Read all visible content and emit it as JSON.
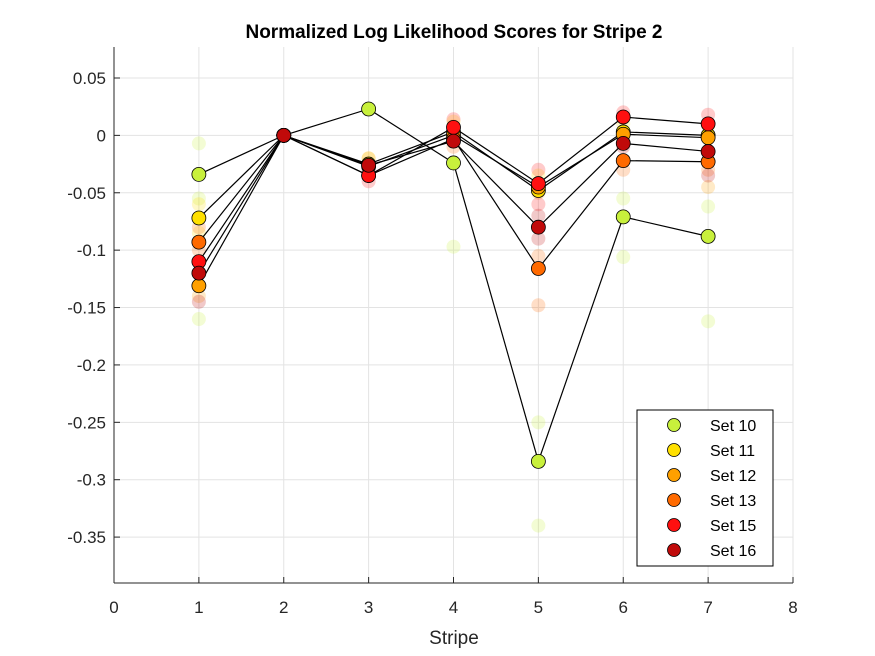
{
  "chart_data": {
    "type": "scatter",
    "title": "Normalized Log Likelihood Scores for Stripe 2",
    "xlabel": "Stripe",
    "ylabel": "",
    "xlim": [
      0,
      8
    ],
    "ylim": [
      -0.39,
      0.077
    ],
    "xticks": [
      "0",
      "1",
      "2",
      "3",
      "4",
      "5",
      "6",
      "7",
      "8"
    ],
    "yticks": [
      {
        "value": 0.05,
        "label": "0.05"
      },
      {
        "value": 0,
        "label": "0"
      },
      {
        "value": -0.05,
        "label": "-0.05"
      },
      {
        "value": -0.1,
        "label": "-0.1"
      },
      {
        "value": -0.15,
        "label": "-0.15"
      },
      {
        "value": -0.2,
        "label": "-0.2"
      },
      {
        "value": -0.25,
        "label": "-0.25"
      },
      {
        "value": -0.3,
        "label": "-0.3"
      },
      {
        "value": -0.35,
        "label": "-0.35"
      }
    ],
    "grid": true,
    "legend_position": "bottom-right",
    "x": [
      1,
      2,
      3,
      4,
      5,
      6,
      7
    ],
    "series": [
      {
        "name": "Set 10",
        "color": "#C8F03C",
        "values": [
          -0.034,
          0,
          0.023,
          -0.024,
          -0.284,
          -0.071,
          -0.088
        ],
        "scatter": [
          [
            1,
            -0.007
          ],
          [
            1,
            -0.055
          ],
          [
            1,
            -0.16
          ],
          [
            4,
            -0.097
          ],
          [
            5,
            -0.25
          ],
          [
            5,
            -0.34
          ],
          [
            6,
            -0.055
          ],
          [
            6,
            -0.106
          ],
          [
            7,
            -0.062
          ],
          [
            7,
            -0.162
          ]
        ]
      },
      {
        "name": "Set 11",
        "color": "#FFE000",
        "values": [
          -0.072,
          0,
          -0.025,
          0.003,
          -0.048,
          0.003,
          0.0
        ],
        "scatter": [
          [
            1,
            -0.06
          ],
          [
            1,
            -0.085
          ],
          [
            3,
            -0.02
          ],
          [
            4,
            0.012
          ],
          [
            5,
            -0.035
          ],
          [
            6,
            0.01
          ],
          [
            7,
            0.008
          ]
        ]
      },
      {
        "name": "Set 12",
        "color": "#FFA000",
        "values": [
          -0.131,
          0,
          -0.027,
          0.0,
          -0.045,
          0.001,
          -0.002
        ],
        "scatter": [
          [
            1,
            -0.14
          ],
          [
            3,
            -0.02
          ],
          [
            3,
            -0.035
          ],
          [
            4,
            0.008
          ],
          [
            5,
            -0.05
          ],
          [
            6,
            -0.005
          ],
          [
            7,
            -0.045
          ]
        ]
      },
      {
        "name": "Set 13",
        "color": "#FF6A00",
        "values": [
          -0.093,
          0,
          -0.035,
          -0.003,
          -0.116,
          -0.022,
          -0.023
        ],
        "scatter": [
          [
            1,
            -0.08
          ],
          [
            1,
            -0.1
          ],
          [
            3,
            -0.025
          ],
          [
            4,
            -0.01
          ],
          [
            5,
            -0.105
          ],
          [
            5,
            -0.148
          ],
          [
            6,
            -0.03
          ],
          [
            7,
            -0.03
          ]
        ]
      },
      {
        "name": "Set 15",
        "color": "#FF1010",
        "values": [
          -0.11,
          0,
          -0.035,
          0.007,
          -0.042,
          0.016,
          0.01
        ],
        "scatter": [
          [
            1,
            -0.12
          ],
          [
            3,
            -0.04
          ],
          [
            4,
            0.014
          ],
          [
            5,
            -0.03
          ],
          [
            5,
            -0.06
          ],
          [
            6,
            0.02
          ],
          [
            7,
            0.018
          ]
        ]
      },
      {
        "name": "Set 16",
        "color": "#C00A0A",
        "values": [
          -0.12,
          0,
          -0.026,
          -0.005,
          -0.08,
          -0.007,
          -0.014
        ],
        "scatter": [
          [
            1,
            -0.145
          ],
          [
            3,
            -0.03
          ],
          [
            4,
            0.0
          ],
          [
            5,
            -0.07
          ],
          [
            5,
            -0.09
          ],
          [
            6,
            -0.01
          ],
          [
            7,
            -0.035
          ]
        ]
      }
    ]
  }
}
